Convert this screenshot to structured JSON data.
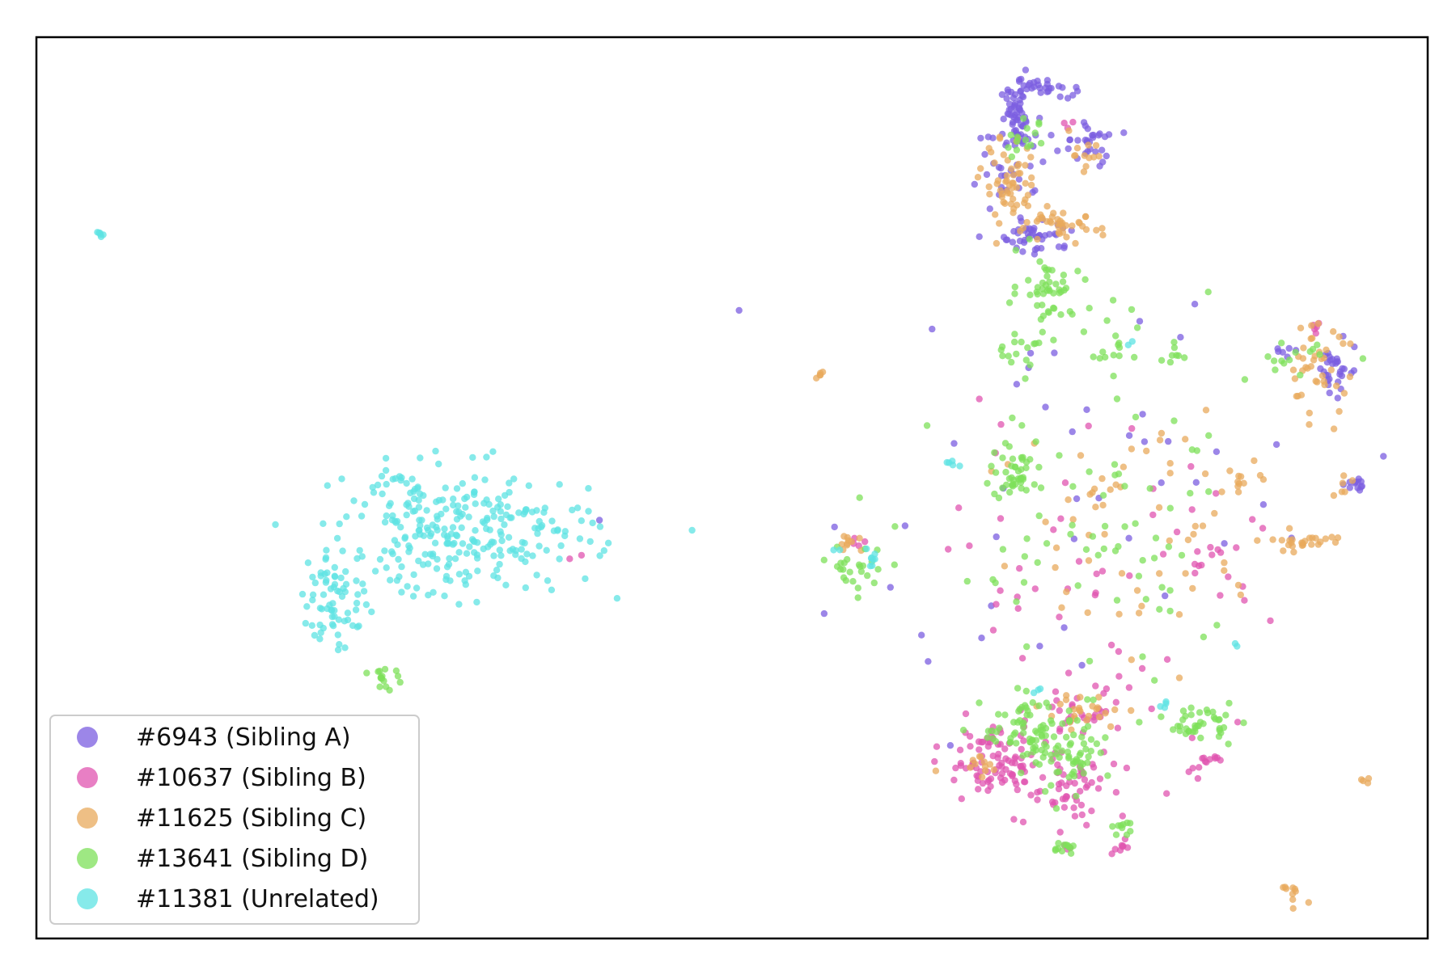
{
  "chart_data": {
    "type": "scatter",
    "title": "",
    "xlabel": "",
    "ylabel": "",
    "xlim": [
      0,
      100
    ],
    "ylim": [
      0,
      100
    ],
    "grid": false,
    "ticks": false,
    "legend_position": "lower-left",
    "series": [
      {
        "name": "#6943 (Sibling A)",
        "color": "#7b5ee0",
        "clusters": [
          {
            "x": 70.5,
            "y": 91.0,
            "sx": 0.6,
            "sy": 1.8,
            "n": 60
          },
          {
            "x": 72.5,
            "y": 94.5,
            "sx": 1.0,
            "sy": 0.6,
            "n": 25
          },
          {
            "x": 75.5,
            "y": 88.0,
            "sx": 1.0,
            "sy": 1.2,
            "n": 30
          },
          {
            "x": 72.0,
            "y": 78.0,
            "sx": 1.3,
            "sy": 1.0,
            "n": 45
          },
          {
            "x": 70.0,
            "y": 86.0,
            "sx": 1.5,
            "sy": 2.5,
            "n": 30
          },
          {
            "x": 93.5,
            "y": 63.5,
            "sx": 0.6,
            "sy": 1.8,
            "n": 30
          },
          {
            "x": 94.5,
            "y": 50.5,
            "sx": 0.4,
            "sy": 0.4,
            "n": 12
          },
          {
            "x": 89.5,
            "y": 65.0,
            "sx": 0.6,
            "sy": 0.4,
            "n": 6
          },
          {
            "x": 40.0,
            "y": 46.5,
            "sx": 0.2,
            "sy": 0.2,
            "n": 1
          },
          {
            "x": 75.0,
            "y": 50.0,
            "sx": 9.0,
            "sy": 12.0,
            "n": 45
          }
        ]
      },
      {
        "name": "#10637 (Sibling B)",
        "color": "#e054b0",
        "clusters": [
          {
            "x": 69.0,
            "y": 19.5,
            "sx": 1.8,
            "sy": 2.0,
            "n": 95
          },
          {
            "x": 74.0,
            "y": 16.5,
            "sx": 1.5,
            "sy": 2.5,
            "n": 55
          },
          {
            "x": 75.0,
            "y": 25.0,
            "sx": 2.0,
            "sy": 1.5,
            "n": 30
          },
          {
            "x": 84.0,
            "y": 20.0,
            "sx": 1.0,
            "sy": 1.0,
            "n": 14
          },
          {
            "x": 78.0,
            "y": 10.0,
            "sx": 0.5,
            "sy": 0.5,
            "n": 8
          },
          {
            "x": 84.0,
            "y": 42.0,
            "sx": 0.6,
            "sy": 0.6,
            "n": 8
          },
          {
            "x": 73.5,
            "y": 90.5,
            "sx": 0.4,
            "sy": 0.4,
            "n": 3
          },
          {
            "x": 92.0,
            "y": 67.5,
            "sx": 0.4,
            "sy": 0.4,
            "n": 5
          },
          {
            "x": 39.0,
            "y": 42.5,
            "sx": 0.3,
            "sy": 0.3,
            "n": 2
          },
          {
            "x": 58.5,
            "y": 44.0,
            "sx": 0.4,
            "sy": 0.4,
            "n": 4
          },
          {
            "x": 78.0,
            "y": 40.0,
            "sx": 6.0,
            "sy": 9.0,
            "n": 55
          }
        ]
      },
      {
        "name": "#11625 (Sibling C)",
        "color": "#e8a95c",
        "clusters": [
          {
            "x": 70.0,
            "y": 83.5,
            "sx": 1.0,
            "sy": 2.5,
            "n": 55
          },
          {
            "x": 73.5,
            "y": 79.0,
            "sx": 1.5,
            "sy": 0.8,
            "n": 40
          },
          {
            "x": 75.0,
            "y": 87.0,
            "sx": 0.8,
            "sy": 1.0,
            "n": 12
          },
          {
            "x": 92.0,
            "y": 63.0,
            "sx": 1.2,
            "sy": 2.5,
            "n": 40
          },
          {
            "x": 91.0,
            "y": 44.0,
            "sx": 1.5,
            "sy": 0.6,
            "n": 25
          },
          {
            "x": 86.5,
            "y": 51.0,
            "sx": 0.8,
            "sy": 0.6,
            "n": 10
          },
          {
            "x": 94.0,
            "y": 50.0,
            "sx": 0.4,
            "sy": 0.6,
            "n": 6
          },
          {
            "x": 90.5,
            "y": 5.0,
            "sx": 0.5,
            "sy": 0.5,
            "n": 10
          },
          {
            "x": 95.5,
            "y": 17.5,
            "sx": 0.2,
            "sy": 0.2,
            "n": 4
          },
          {
            "x": 56.2,
            "y": 62.5,
            "sx": 0.2,
            "sy": 0.2,
            "n": 5
          },
          {
            "x": 58.5,
            "y": 44.0,
            "sx": 0.6,
            "sy": 0.6,
            "n": 10
          },
          {
            "x": 75.5,
            "y": 25.0,
            "sx": 1.5,
            "sy": 1.0,
            "n": 25
          },
          {
            "x": 67.5,
            "y": 20.0,
            "sx": 1.2,
            "sy": 0.8,
            "n": 12
          },
          {
            "x": 80.0,
            "y": 45.0,
            "sx": 6.0,
            "sy": 8.0,
            "n": 60
          }
        ]
      },
      {
        "name": "#13641 (Sibling D)",
        "color": "#7ee05a",
        "clusters": [
          {
            "x": 72.5,
            "y": 72.5,
            "sx": 1.0,
            "sy": 1.8,
            "n": 40
          },
          {
            "x": 71.0,
            "y": 65.5,
            "sx": 1.0,
            "sy": 1.0,
            "n": 18
          },
          {
            "x": 70.5,
            "y": 52.0,
            "sx": 1.0,
            "sy": 1.8,
            "n": 45
          },
          {
            "x": 71.5,
            "y": 23.0,
            "sx": 1.8,
            "sy": 2.0,
            "n": 70
          },
          {
            "x": 74.5,
            "y": 20.0,
            "sx": 1.5,
            "sy": 2.0,
            "n": 55
          },
          {
            "x": 83.5,
            "y": 24.0,
            "sx": 1.2,
            "sy": 1.0,
            "n": 40
          },
          {
            "x": 74.0,
            "y": 10.0,
            "sx": 0.5,
            "sy": 0.3,
            "n": 12
          },
          {
            "x": 78.0,
            "y": 12.5,
            "sx": 0.4,
            "sy": 0.5,
            "n": 10
          },
          {
            "x": 59.0,
            "y": 41.0,
            "sx": 1.3,
            "sy": 1.3,
            "n": 25
          },
          {
            "x": 71.0,
            "y": 88.5,
            "sx": 0.8,
            "sy": 1.0,
            "n": 15
          },
          {
            "x": 77.0,
            "y": 65.0,
            "sx": 0.5,
            "sy": 0.6,
            "n": 6
          },
          {
            "x": 82.0,
            "y": 64.5,
            "sx": 0.5,
            "sy": 0.8,
            "n": 8
          },
          {
            "x": 90.0,
            "y": 64.0,
            "sx": 1.5,
            "sy": 1.0,
            "n": 15
          },
          {
            "x": 25.0,
            "y": 29.0,
            "sx": 0.5,
            "sy": 0.7,
            "n": 15
          },
          {
            "x": 75.5,
            "y": 70.0,
            "sx": 2.0,
            "sy": 3.0,
            "n": 15
          },
          {
            "x": 77.0,
            "y": 42.0,
            "sx": 6.0,
            "sy": 9.0,
            "n": 70
          }
        ]
      },
      {
        "name": "#11381 (Unrelated)",
        "color": "#5ee3e3",
        "clusters": [
          {
            "x": 31.0,
            "y": 45.0,
            "sx": 4.5,
            "sy": 3.5,
            "n": 260
          },
          {
            "x": 21.5,
            "y": 38.0,
            "sx": 1.2,
            "sy": 3.0,
            "n": 70
          },
          {
            "x": 26.5,
            "y": 48.0,
            "sx": 1.5,
            "sy": 2.5,
            "n": 20
          },
          {
            "x": 4.7,
            "y": 78.3,
            "sx": 0.15,
            "sy": 0.15,
            "n": 6
          },
          {
            "x": 60.0,
            "y": 42.0,
            "sx": 0.3,
            "sy": 0.5,
            "n": 8
          },
          {
            "x": 66.0,
            "y": 52.5,
            "sx": 0.3,
            "sy": 0.3,
            "n": 5
          },
          {
            "x": 78.5,
            "y": 65.5,
            "sx": 0.3,
            "sy": 0.3,
            "n": 2
          },
          {
            "x": 81.0,
            "y": 26.0,
            "sx": 0.2,
            "sy": 0.5,
            "n": 4
          },
          {
            "x": 72.0,
            "y": 27.5,
            "sx": 0.2,
            "sy": 0.2,
            "n": 3
          },
          {
            "x": 86.0,
            "y": 32.5,
            "sx": 0.2,
            "sy": 0.2,
            "n": 2
          },
          {
            "x": 57.5,
            "y": 43.5,
            "sx": 0.4,
            "sy": 0.4,
            "n": 2
          }
        ]
      }
    ]
  }
}
